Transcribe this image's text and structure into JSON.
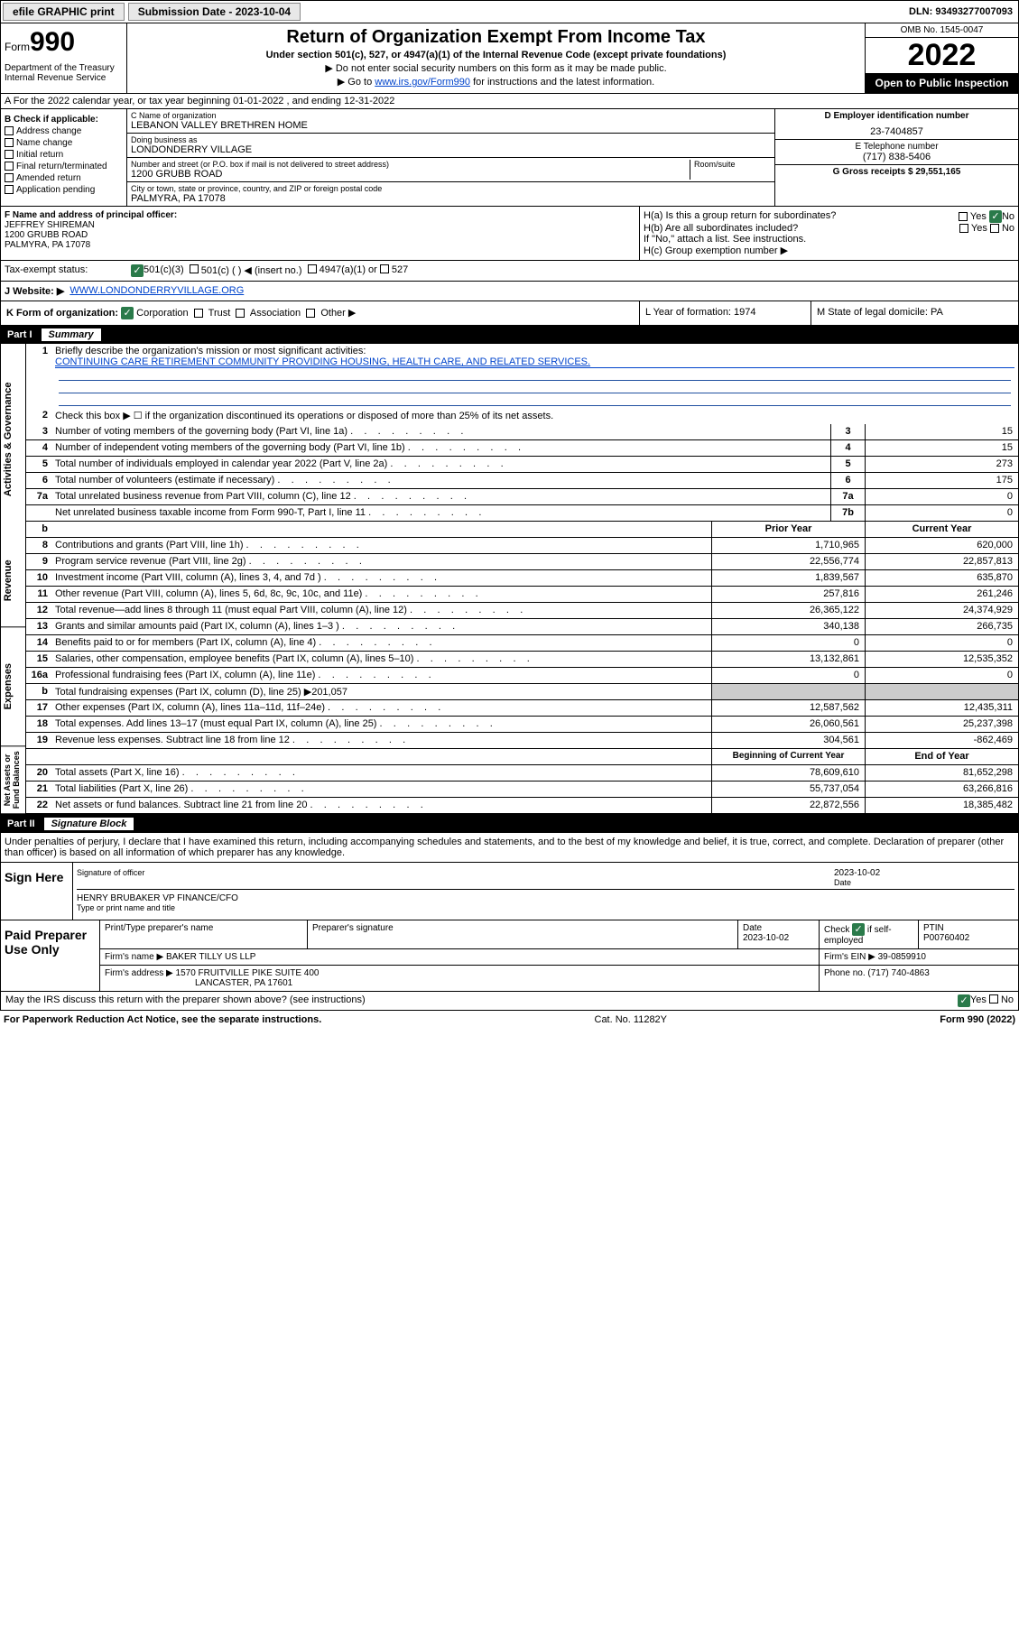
{
  "topbar": {
    "efile": "efile GRAPHIC print",
    "sub_label": "Submission Date - 2023-10-04",
    "dln": "DLN: 93493277007093"
  },
  "header": {
    "form_prefix": "Form",
    "form_num": "990",
    "dept": "Department of the Treasury\nInternal Revenue Service",
    "title": "Return of Organization Exempt From Income Tax",
    "subtitle": "Under section 501(c), 527, or 4947(a)(1) of the Internal Revenue Code (except private foundations)",
    "line2": "▶ Do not enter social security numbers on this form as it may be made public.",
    "line3_pre": "▶ Go to ",
    "line3_link": "www.irs.gov/Form990",
    "line3_post": " for instructions and the latest information.",
    "omb": "OMB No. 1545-0047",
    "year": "2022",
    "inspection": "Open to Public Inspection"
  },
  "rowA": "A For the 2022 calendar year, or tax year beginning 01-01-2022   , and ending 12-31-2022",
  "boxB": {
    "label": "B Check if applicable:",
    "opts": [
      "Address change",
      "Name change",
      "Initial return",
      "Final return/terminated",
      "Amended return",
      "Application pending"
    ]
  },
  "org": {
    "c_label": "C Name of organization",
    "name": "LEBANON VALLEY BRETHREN HOME",
    "dba_label": "Doing business as",
    "dba": "LONDONDERRY VILLAGE",
    "street_label": "Number and street (or P.O. box if mail is not delivered to street address)",
    "room_label": "Room/suite",
    "street": "1200 GRUBB ROAD",
    "city_label": "City or town, state or province, country, and ZIP or foreign postal code",
    "city": "PALMYRA, PA  17078"
  },
  "right": {
    "d_label": "D Employer identification number",
    "d_val": "23-7404857",
    "e_label": "E Telephone number",
    "e_val": "(717) 838-5406",
    "g_label": "G Gross receipts $ 29,551,165"
  },
  "rowF": {
    "label": "F  Name and address of principal officer:",
    "name": "JEFFREY SHIREMAN",
    "addr1": "1200 GRUBB ROAD",
    "addr2": "PALMYRA, PA  17078"
  },
  "rowH": {
    "ha": "H(a)  Is this a group return for subordinates?",
    "hb": "H(b)  Are all subordinates included?",
    "hb_note": "If \"No,\" attach a list. See instructions.",
    "hc": "H(c)  Group exemption number ▶",
    "yes": "Yes",
    "no": "No"
  },
  "rowI": {
    "label": "Tax-exempt status:",
    "o1": "501(c)(3)",
    "o2": "501(c) (  ) ◀ (insert no.)",
    "o3": "4947(a)(1) or",
    "o4": "527"
  },
  "rowJ": {
    "label": "J   Website: ▶",
    "val": "WWW.LONDONDERRYVILLAGE.ORG"
  },
  "rowK": {
    "label": "K Form of organization:",
    "o1": "Corporation",
    "o2": "Trust",
    "o3": "Association",
    "o4": "Other ▶",
    "l": "L Year of formation: 1974",
    "m": "M State of legal domicile: PA"
  },
  "partI": {
    "num": "Part I",
    "title": "Summary"
  },
  "sidebars": [
    "Activities & Governance",
    "Revenue",
    "Expenses",
    "Net Assets or Fund Balances"
  ],
  "summary": {
    "q1": "Briefly describe the organization's mission or most significant activities:",
    "q1_text": "CONTINUING CARE RETIREMENT COMMUNITY PROVIDING HOUSING, HEALTH CARE, AND RELATED SERVICES.",
    "q2": "Check this box ▶ ☐  if the organization discontinued its operations or disposed of more than 25% of its net assets.",
    "rows_single": [
      {
        "n": "3",
        "t": "Number of voting members of the governing body (Part VI, line 1a)",
        "b": "3",
        "v": "15"
      },
      {
        "n": "4",
        "t": "Number of independent voting members of the governing body (Part VI, line 1b)",
        "b": "4",
        "v": "15"
      },
      {
        "n": "5",
        "t": "Total number of individuals employed in calendar year 2022 (Part V, line 2a)",
        "b": "5",
        "v": "273"
      },
      {
        "n": "6",
        "t": "Total number of volunteers (estimate if necessary)",
        "b": "6",
        "v": "175"
      },
      {
        "n": "7a",
        "t": "Total unrelated business revenue from Part VIII, column (C), line 12",
        "b": "7a",
        "v": "0"
      },
      {
        "n": "",
        "t": "Net unrelated business taxable income from Form 990-T, Part I, line 11",
        "b": "7b",
        "v": "0"
      }
    ],
    "col_hdr": {
      "n": "b",
      "t": "",
      "v1": "Prior Year",
      "v2": "Current Year"
    },
    "rows_rev": [
      {
        "n": "8",
        "t": "Contributions and grants (Part VIII, line 1h)",
        "v1": "1,710,965",
        "v2": "620,000"
      },
      {
        "n": "9",
        "t": "Program service revenue (Part VIII, line 2g)",
        "v1": "22,556,774",
        "v2": "22,857,813"
      },
      {
        "n": "10",
        "t": "Investment income (Part VIII, column (A), lines 3, 4, and 7d )",
        "v1": "1,839,567",
        "v2": "635,870"
      },
      {
        "n": "11",
        "t": "Other revenue (Part VIII, column (A), lines 5, 6d, 8c, 9c, 10c, and 11e)",
        "v1": "257,816",
        "v2": "261,246"
      },
      {
        "n": "12",
        "t": "Total revenue—add lines 8 through 11 (must equal Part VIII, column (A), line 12)",
        "v1": "26,365,122",
        "v2": "24,374,929"
      }
    ],
    "rows_exp": [
      {
        "n": "13",
        "t": "Grants and similar amounts paid (Part IX, column (A), lines 1–3 )",
        "v1": "340,138",
        "v2": "266,735"
      },
      {
        "n": "14",
        "t": "Benefits paid to or for members (Part IX, column (A), line 4)",
        "v1": "0",
        "v2": "0"
      },
      {
        "n": "15",
        "t": "Salaries, other compensation, employee benefits (Part IX, column (A), lines 5–10)",
        "v1": "13,132,861",
        "v2": "12,535,352"
      },
      {
        "n": "16a",
        "t": "Professional fundraising fees (Part IX, column (A), line 11e)",
        "v1": "0",
        "v2": "0"
      }
    ],
    "row16b": {
      "n": "b",
      "t": "Total fundraising expenses (Part IX, column (D), line 25) ▶201,057"
    },
    "rows_exp2": [
      {
        "n": "17",
        "t": "Other expenses (Part IX, column (A), lines 11a–11d, 11f–24e)",
        "v1": "12,587,562",
        "v2": "12,435,311"
      },
      {
        "n": "18",
        "t": "Total expenses. Add lines 13–17 (must equal Part IX, column (A), line 25)",
        "v1": "26,060,561",
        "v2": "25,237,398"
      },
      {
        "n": "19",
        "t": "Revenue less expenses. Subtract line 18 from line 12",
        "v1": "304,561",
        "v2": "-862,469"
      }
    ],
    "col_hdr2": {
      "t": "",
      "v1": "Beginning of Current Year",
      "v2": "End of Year"
    },
    "rows_net": [
      {
        "n": "20",
        "t": "Total assets (Part X, line 16)",
        "v1": "78,609,610",
        "v2": "81,652,298"
      },
      {
        "n": "21",
        "t": "Total liabilities (Part X, line 26)",
        "v1": "55,737,054",
        "v2": "63,266,816"
      },
      {
        "n": "22",
        "t": "Net assets or fund balances. Subtract line 21 from line 20",
        "v1": "22,872,556",
        "v2": "18,385,482"
      }
    ]
  },
  "partII": {
    "num": "Part II",
    "title": "Signature Block"
  },
  "sigblock": "Under penalties of perjury, I declare that I have examined this return, including accompanying schedules and statements, and to the best of my knowledge and belief, it is true, correct, and complete. Declaration of preparer (other than officer) is based on all information of which preparer has any knowledge.",
  "sign": {
    "label": "Sign Here",
    "sig_label": "Signature of officer",
    "date_label": "Date",
    "date": "2023-10-02",
    "name": "HENRY BRUBAKER  VP FINANCE/CFO",
    "name_label": "Type or print name and title"
  },
  "paid": {
    "label": "Paid Preparer Use Only",
    "h1": "Print/Type preparer's name",
    "h2": "Preparer's signature",
    "h3": "Date",
    "h4": "Check ☑ if self-employed",
    "h5": "PTIN",
    "date": "2023-10-02",
    "ptin": "P00760402",
    "firm_label": "Firm's name    ▶",
    "firm": "BAKER TILLY US LLP",
    "ein_label": "Firm's EIN ▶",
    "ein": "39-0859910",
    "addr_label": "Firm's address ▶",
    "addr": "1570 FRUITVILLE PIKE SUITE 400",
    "addr2": "LANCASTER, PA  17601",
    "phone_label": "Phone no.",
    "phone": "(717) 740-4863"
  },
  "mayirs": "May the IRS discuss this return with the preparer shown above? (see instructions)",
  "yn": {
    "yes": "Yes",
    "no": "No"
  },
  "footer": {
    "left": "For Paperwork Reduction Act Notice, see the separate instructions.",
    "mid": "Cat. No. 11282Y",
    "right": "Form 990 (2022)"
  }
}
